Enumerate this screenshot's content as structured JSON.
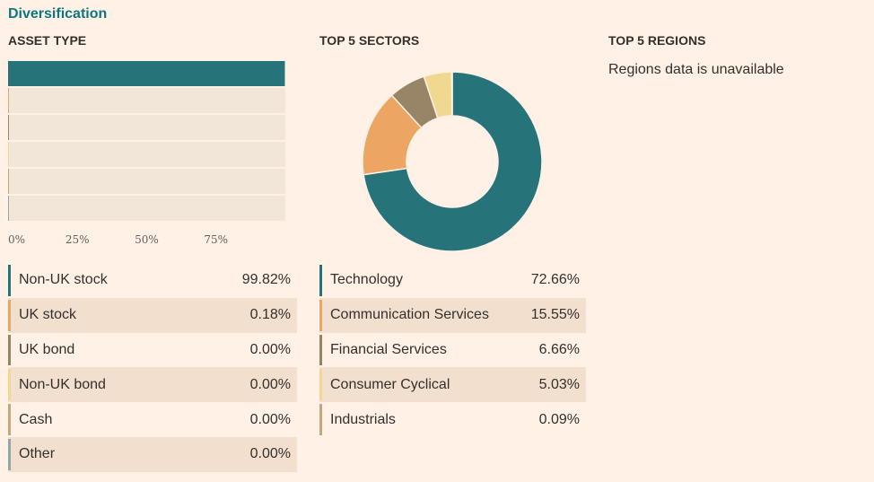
{
  "section_title": "Diversification",
  "columns": {
    "asset_type": "ASSET TYPE",
    "top_sectors": "TOP 5 SECTORS",
    "top_regions": "TOP 5 REGIONS"
  },
  "regions_note": "Regions data is unavailable",
  "colors": {
    "teal": "#26747a",
    "orange": "#eca563",
    "brown": "#988466",
    "yellow": "#f0d890",
    "tan": "#c0a97a",
    "slate": "#8fa8ac",
    "track": "#f2e6d8"
  },
  "chart_data": [
    {
      "type": "bar",
      "orientation": "horizontal",
      "title": "ASSET TYPE",
      "categories": [
        "Non-UK stock",
        "UK stock",
        "UK bond",
        "Non-UK bond",
        "Cash",
        "Other"
      ],
      "values": [
        99.82,
        0.18,
        0.0,
        0.0,
        0.0,
        0.0
      ],
      "value_labels": [
        "99.82%",
        "0.18%",
        "0.00%",
        "0.00%",
        "0.00%",
        "0.00%"
      ],
      "xlim": [
        0,
        100
      ],
      "ticks": [
        0,
        25,
        50,
        75
      ],
      "tick_labels": [
        "0%",
        "25%",
        "50%",
        "75%"
      ],
      "series_colors": [
        "#26747a",
        "#eca563",
        "#988466",
        "#f0d890",
        "#c0a97a",
        "#8fa8ac"
      ]
    },
    {
      "type": "pie",
      "donut": true,
      "title": "TOP 5 SECTORS",
      "categories": [
        "Technology",
        "Communication Services",
        "Financial Services",
        "Consumer Cyclical",
        "Industrials"
      ],
      "values": [
        72.66,
        15.55,
        6.66,
        5.03,
        0.09
      ],
      "value_labels": [
        "72.66%",
        "15.55%",
        "6.66%",
        "5.03%",
        "0.09%"
      ],
      "series_colors": [
        "#26747a",
        "#eca563",
        "#988466",
        "#f0d890",
        "#c0a97a"
      ]
    }
  ]
}
